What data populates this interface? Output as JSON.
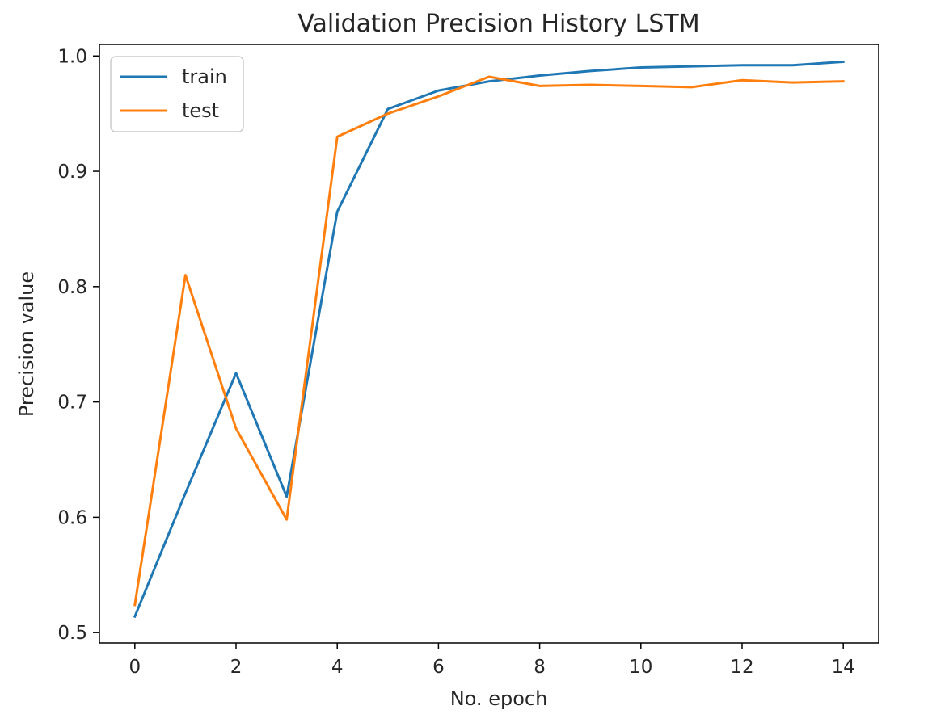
{
  "chart_data": {
    "type": "line",
    "title": "Validation Precision History LSTM",
    "xlabel": "No. epoch",
    "ylabel": "Precision value",
    "x": [
      0,
      1,
      2,
      3,
      4,
      5,
      6,
      7,
      8,
      9,
      10,
      11,
      12,
      13,
      14
    ],
    "xticks": [
      "0",
      "2",
      "4",
      "6",
      "8",
      "10",
      "12",
      "14"
    ],
    "yticks": [
      "0.5",
      "0.6",
      "0.7",
      "0.8",
      "0.9",
      "1.0"
    ],
    "xlim": [
      -0.7,
      14.7
    ],
    "ylim": [
      0.491,
      1.01
    ],
    "grid": false,
    "legend_position": "top-left",
    "series": [
      {
        "name": "train",
        "color": "#1f77b4",
        "values": [
          0.514,
          0.621,
          0.725,
          0.618,
          0.865,
          0.954,
          0.97,
          0.978,
          0.983,
          0.987,
          0.99,
          0.991,
          0.992,
          0.992,
          0.995
        ]
      },
      {
        "name": "test",
        "color": "#ff7f0e",
        "values": [
          0.524,
          0.81,
          0.677,
          0.598,
          0.93,
          0.95,
          0.965,
          0.982,
          0.974,
          0.975,
          0.974,
          0.973,
          0.979,
          0.977,
          0.978
        ]
      }
    ]
  }
}
